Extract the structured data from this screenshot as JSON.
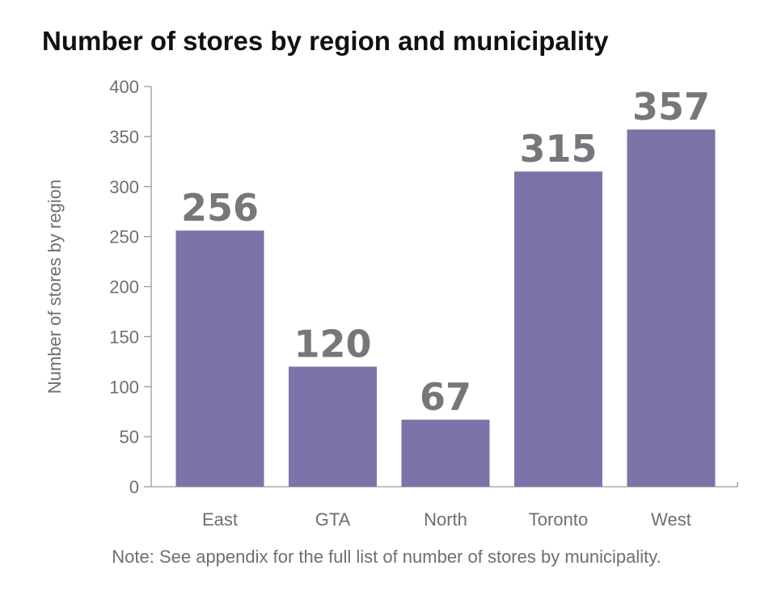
{
  "title": "Number of stores by region and municipality",
  "note": "Note: See appendix for the full list of number of stores by municipality.",
  "colors": {
    "bar": "#7d73a9",
    "axis": "#9a9a9e",
    "text": "#6f6f73",
    "data_label": "#77777b",
    "title": "#111111"
  },
  "chart_data": {
    "type": "bar",
    "title": "Number of stores by region and municipality",
    "categories": [
      "East",
      "GTA",
      "North",
      "Toronto",
      "West"
    ],
    "values": [
      256,
      120,
      67,
      315,
      357
    ],
    "data_labels": [
      "256",
      "120",
      "67",
      "315",
      "357"
    ],
    "xlabel": "",
    "ylabel": "Number of stores by region",
    "ylim": [
      0,
      400
    ],
    "yticks": [
      0,
      50,
      100,
      150,
      200,
      250,
      300,
      350,
      400
    ],
    "ytick_labels": [
      "0",
      "50",
      "100",
      "150",
      "200",
      "250",
      "300",
      "350",
      "400"
    ],
    "grid": false,
    "legend": "none"
  }
}
